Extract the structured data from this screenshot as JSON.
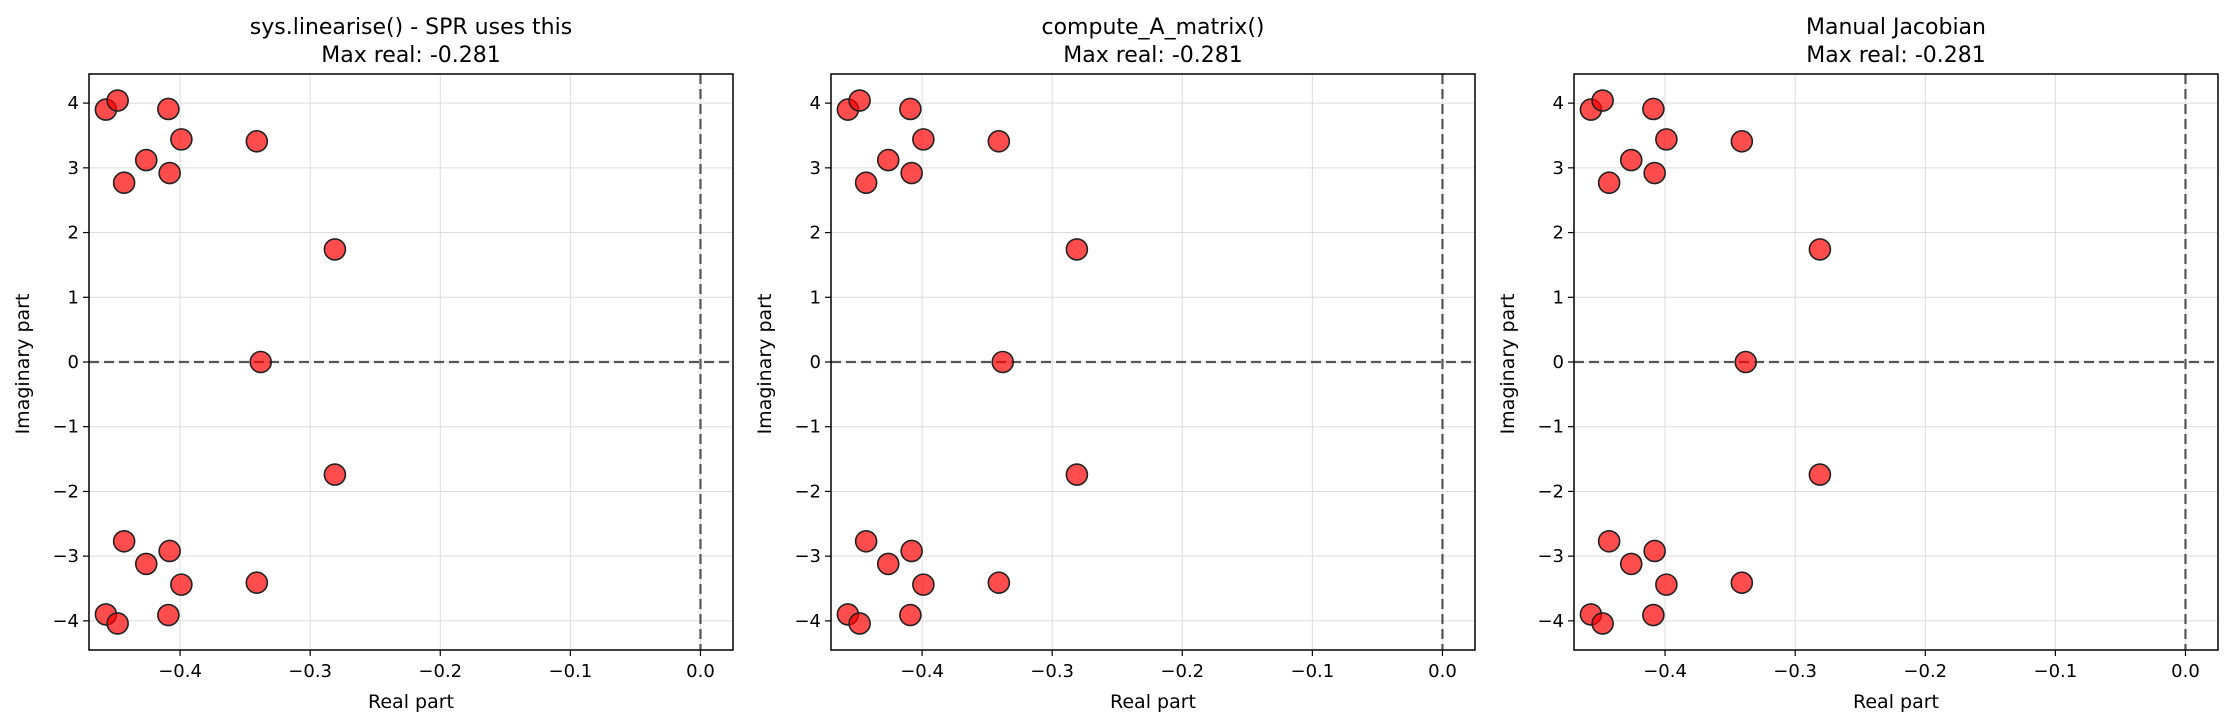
{
  "figure": {
    "background": "#ffffff"
  },
  "style": {
    "marker_fill": "#ff0000",
    "marker_fill_opacity": 0.7,
    "marker_edge": "#222222",
    "reference_line_color": "#555555",
    "grid_color": "#dddddd"
  },
  "chart_data": [
    {
      "type": "scatter",
      "title_line1": "sys.linearise() - SPR uses this",
      "title_line2": "Max real: -0.281",
      "xlabel": "Real part",
      "ylabel": "Imaginary part",
      "xlim": [
        -0.47,
        0.025
      ],
      "ylim": [
        -4.45,
        4.45
      ],
      "xticks": [
        -0.4,
        -0.3,
        -0.2,
        -0.1,
        0.0
      ],
      "xtick_labels": [
        "−0.4",
        "−0.3",
        "−0.2",
        "−0.1",
        "0.0"
      ],
      "yticks": [
        -4,
        -3,
        -2,
        -1,
        0,
        1,
        2,
        3,
        4
      ],
      "ytick_labels": [
        "−4",
        "−3",
        "−2",
        "−1",
        "0",
        "1",
        "2",
        "3",
        "4"
      ],
      "grid": true,
      "reference_lines": {
        "x": 0,
        "y": 0
      },
      "points": [
        {
          "x": -0.457,
          "y": 3.9
        },
        {
          "x": -0.457,
          "y": -3.9
        },
        {
          "x": -0.448,
          "y": 4.04
        },
        {
          "x": -0.448,
          "y": -4.04
        },
        {
          "x": -0.443,
          "y": 2.77
        },
        {
          "x": -0.443,
          "y": -2.77
        },
        {
          "x": -0.426,
          "y": 3.12
        },
        {
          "x": -0.426,
          "y": -3.12
        },
        {
          "x": -0.409,
          "y": 3.91
        },
        {
          "x": -0.409,
          "y": -3.91
        },
        {
          "x": -0.408,
          "y": 2.92
        },
        {
          "x": -0.408,
          "y": -2.92
        },
        {
          "x": -0.399,
          "y": 3.44
        },
        {
          "x": -0.399,
          "y": -3.44
        },
        {
          "x": -0.341,
          "y": 3.41
        },
        {
          "x": -0.341,
          "y": -3.41
        },
        {
          "x": -0.338,
          "y": 0.0
        },
        {
          "x": -0.281,
          "y": 1.74
        },
        {
          "x": -0.281,
          "y": -1.74
        }
      ]
    },
    {
      "type": "scatter",
      "title_line1": "compute_A_matrix()",
      "title_line2": "Max real: -0.281",
      "xlabel": "Real part",
      "ylabel": "Imaginary part",
      "xlim": [
        -0.47,
        0.025
      ],
      "ylim": [
        -4.45,
        4.45
      ],
      "xticks": [
        -0.4,
        -0.3,
        -0.2,
        -0.1,
        0.0
      ],
      "xtick_labels": [
        "−0.4",
        "−0.3",
        "−0.2",
        "−0.1",
        "0.0"
      ],
      "yticks": [
        -4,
        -3,
        -2,
        -1,
        0,
        1,
        2,
        3,
        4
      ],
      "ytick_labels": [
        "−4",
        "−3",
        "−2",
        "−1",
        "0",
        "1",
        "2",
        "3",
        "4"
      ],
      "grid": true,
      "reference_lines": {
        "x": 0,
        "y": 0
      },
      "points": [
        {
          "x": -0.457,
          "y": 3.9
        },
        {
          "x": -0.457,
          "y": -3.9
        },
        {
          "x": -0.448,
          "y": 4.04
        },
        {
          "x": -0.448,
          "y": -4.04
        },
        {
          "x": -0.443,
          "y": 2.77
        },
        {
          "x": -0.443,
          "y": -2.77
        },
        {
          "x": -0.426,
          "y": 3.12
        },
        {
          "x": -0.426,
          "y": -3.12
        },
        {
          "x": -0.409,
          "y": 3.91
        },
        {
          "x": -0.409,
          "y": -3.91
        },
        {
          "x": -0.408,
          "y": 2.92
        },
        {
          "x": -0.408,
          "y": -2.92
        },
        {
          "x": -0.399,
          "y": 3.44
        },
        {
          "x": -0.399,
          "y": -3.44
        },
        {
          "x": -0.341,
          "y": 3.41
        },
        {
          "x": -0.341,
          "y": -3.41
        },
        {
          "x": -0.338,
          "y": 0.0
        },
        {
          "x": -0.281,
          "y": 1.74
        },
        {
          "x": -0.281,
          "y": -1.74
        }
      ]
    },
    {
      "type": "scatter",
      "title_line1": "Manual Jacobian",
      "title_line2": "Max real: -0.281",
      "xlabel": "Real part",
      "ylabel": "Imaginary part",
      "xlim": [
        -0.47,
        0.025
      ],
      "ylim": [
        -4.45,
        4.45
      ],
      "xticks": [
        -0.4,
        -0.3,
        -0.2,
        -0.1,
        0.0
      ],
      "xtick_labels": [
        "−0.4",
        "−0.3",
        "−0.2",
        "−0.1",
        "0.0"
      ],
      "yticks": [
        -4,
        -3,
        -2,
        -1,
        0,
        1,
        2,
        3,
        4
      ],
      "ytick_labels": [
        "−4",
        "−3",
        "−2",
        "−1",
        "0",
        "1",
        "2",
        "3",
        "4"
      ],
      "grid": true,
      "reference_lines": {
        "x": 0,
        "y": 0
      },
      "points": [
        {
          "x": -0.457,
          "y": 3.9
        },
        {
          "x": -0.457,
          "y": -3.9
        },
        {
          "x": -0.448,
          "y": 4.04
        },
        {
          "x": -0.448,
          "y": -4.04
        },
        {
          "x": -0.443,
          "y": 2.77
        },
        {
          "x": -0.443,
          "y": -2.77
        },
        {
          "x": -0.426,
          "y": 3.12
        },
        {
          "x": -0.426,
          "y": -3.12
        },
        {
          "x": -0.409,
          "y": 3.91
        },
        {
          "x": -0.409,
          "y": -3.91
        },
        {
          "x": -0.408,
          "y": 2.92
        },
        {
          "x": -0.408,
          "y": -2.92
        },
        {
          "x": -0.399,
          "y": 3.44
        },
        {
          "x": -0.399,
          "y": -3.44
        },
        {
          "x": -0.341,
          "y": 3.41
        },
        {
          "x": -0.341,
          "y": -3.41
        },
        {
          "x": -0.338,
          "y": 0.0
        },
        {
          "x": -0.281,
          "y": 1.74
        },
        {
          "x": -0.281,
          "y": -1.74
        }
      ]
    }
  ]
}
